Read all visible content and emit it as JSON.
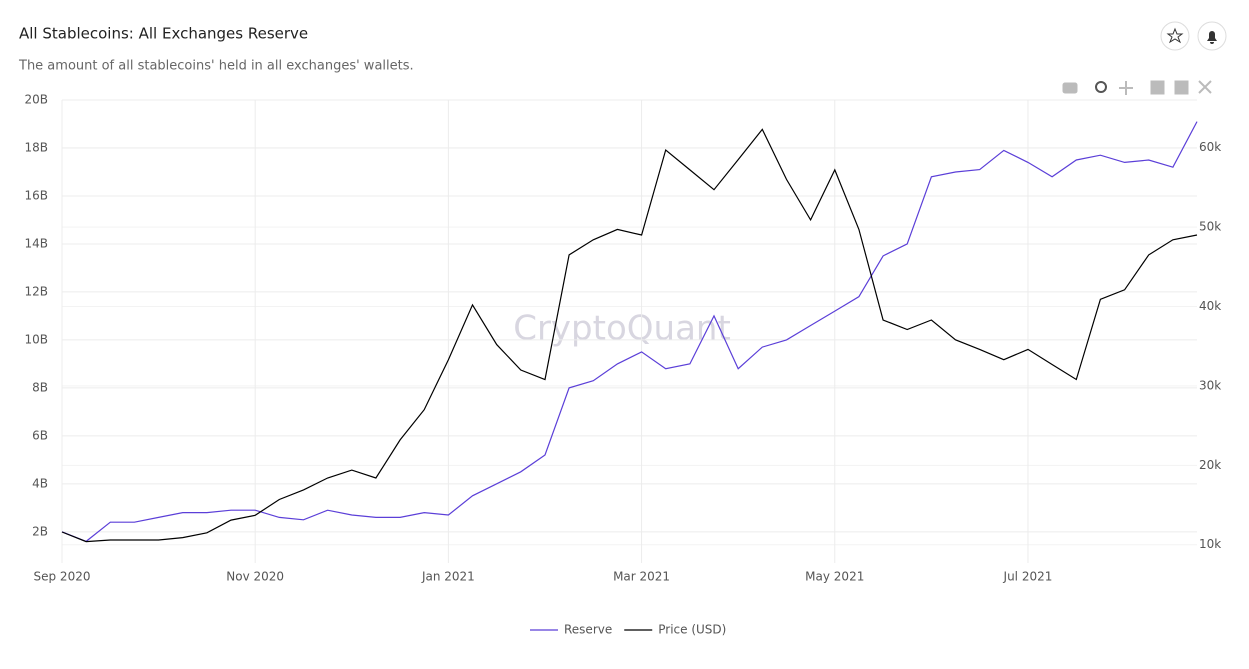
{
  "header": {
    "title": "All Stablecoins: All Exchanges Reserve",
    "subtitle": "The amount of all stablecoins' held in all exchanges' wallets."
  },
  "chart_data": {
    "type": "line",
    "watermark": "CryptoQuant",
    "grid": true,
    "x": [
      "2020-09",
      "2020-09",
      "2020-09",
      "2020-09",
      "2020-10",
      "2020-10",
      "2020-10",
      "2020-10",
      "2020-11",
      "2020-11",
      "2020-11",
      "2020-11",
      "2020-12",
      "2020-12",
      "2020-12",
      "2020-12",
      "2021-01",
      "2021-01",
      "2021-01",
      "2021-01",
      "2021-02",
      "2021-02",
      "2021-02",
      "2021-02",
      "2021-03",
      "2021-03",
      "2021-03",
      "2021-03",
      "2021-04",
      "2021-04",
      "2021-04",
      "2021-04",
      "2021-05",
      "2021-05",
      "2021-05",
      "2021-05",
      "2021-06",
      "2021-06",
      "2021-06",
      "2021-06",
      "2021-07",
      "2021-07",
      "2021-07",
      "2021-07",
      "2021-08",
      "2021-08",
      "2021-08",
      "2021-08"
    ],
    "xticks": [
      {
        "value": "2020-09",
        "label": "Sep 2020"
      },
      {
        "value": "2020-11",
        "label": "Nov 2020"
      },
      {
        "value": "2021-01",
        "label": "Jan 2021"
      },
      {
        "value": "2021-03",
        "label": "Mar 2021"
      },
      {
        "value": "2021-05",
        "label": "May 2021"
      },
      {
        "value": "2021-07",
        "label": "Jul 2021"
      }
    ],
    "ylim": [
      0.7,
      20
    ],
    "yticks": [
      {
        "value": 2,
        "label": "2B"
      },
      {
        "value": 4,
        "label": "4B"
      },
      {
        "value": 6,
        "label": "6B"
      },
      {
        "value": 8,
        "label": "8B"
      },
      {
        "value": 10,
        "label": "10B"
      },
      {
        "value": 12,
        "label": "12B"
      },
      {
        "value": 14,
        "label": "14B"
      },
      {
        "value": 16,
        "label": "16B"
      },
      {
        "value": 18,
        "label": "18B"
      },
      {
        "value": 20,
        "label": "20B"
      }
    ],
    "y2lim": [
      7.7,
      66
    ],
    "y2ticks": [
      {
        "value": 10,
        "label": "10k"
      },
      {
        "value": 20,
        "label": "20k"
      },
      {
        "value": 30,
        "label": "30k"
      },
      {
        "value": 40,
        "label": "40k"
      },
      {
        "value": 50,
        "label": "50k"
      },
      {
        "value": 60,
        "label": "60k"
      }
    ],
    "series": [
      {
        "name": "Reserve",
        "color": "#5b3fd8",
        "values": [
          2.0,
          1.6,
          2.4,
          2.4,
          2.6,
          2.8,
          2.8,
          2.9,
          2.9,
          2.6,
          2.5,
          2.9,
          2.7,
          2.6,
          2.6,
          2.8,
          2.7,
          3.5,
          4.0,
          4.5,
          5.2,
          8.0,
          8.3,
          9.0,
          9.5,
          8.8,
          9.0,
          11.0,
          8.8,
          9.7,
          10.0,
          10.6,
          11.2,
          11.8,
          13.5,
          14.0,
          16.8,
          17.0,
          17.1,
          17.9,
          17.4,
          16.8,
          17.5,
          17.7,
          17.4,
          17.5,
          17.2,
          19.1
        ]
      },
      {
        "name": "Price (USD)",
        "color": "#000000",
        "axis": "y2",
        "values": [
          11.6,
          10.4,
          10.6,
          10.6,
          10.6,
          10.9,
          11.5,
          13.1,
          13.7,
          15.7,
          16.9,
          18.4,
          19.4,
          18.4,
          23.2,
          27.0,
          33.3,
          40.2,
          35.2,
          32.0,
          30.8,
          46.5,
          48.4,
          49.7,
          49.0,
          59.7,
          57.2,
          54.7,
          58.5,
          62.3,
          56.0,
          50.9,
          57.2,
          49.7,
          38.3,
          37.1,
          38.3,
          35.8,
          34.6,
          33.3,
          34.6,
          32.7,
          30.8,
          40.9,
          42.1,
          46.5,
          48.4,
          49.0
        ]
      }
    ]
  }
}
